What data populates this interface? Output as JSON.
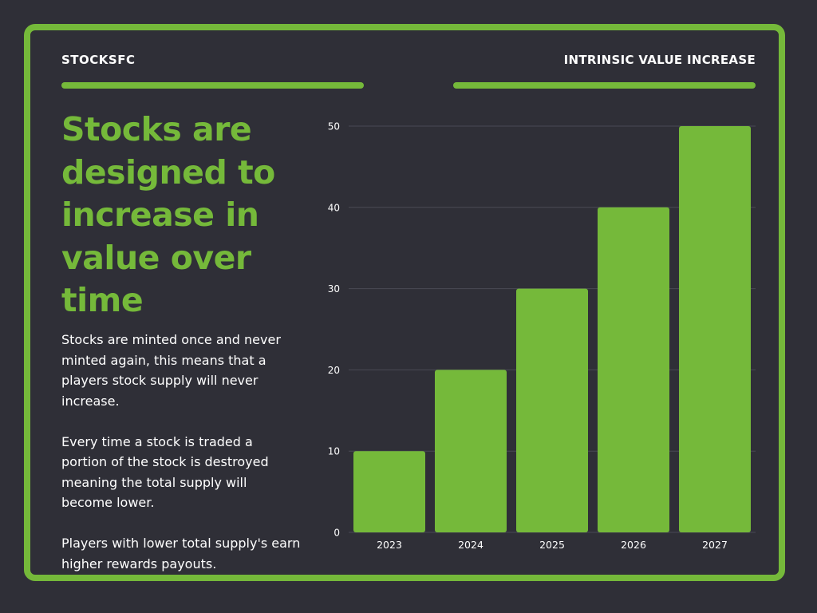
{
  "header": {
    "brand": "STOCKSFC",
    "section_title": "INTRINSIC VALUE INCREASE"
  },
  "headline": "Stocks are designed to increase in value over time",
  "paragraphs": [
    "Stocks are minted once and never minted again, this means that a players stock supply will never increase.",
    "Every time a stock is traded a portion of the stock is destroyed meaning the total supply will become lower.",
    "Players with lower total supply's earn higher rewards payouts."
  ],
  "colors": {
    "accent": "#75b93a",
    "background": "#2f2f37",
    "text": "#ffffff",
    "grid": "#4a4a55"
  },
  "chart_data": {
    "type": "bar",
    "title": "INTRINSIC VALUE INCREASE",
    "categories": [
      "2023",
      "2024",
      "2025",
      "2026",
      "2027"
    ],
    "values": [
      10,
      20,
      30,
      40,
      50
    ],
    "yticks": [
      0,
      10,
      20,
      30,
      40,
      50
    ],
    "ylim": [
      0,
      50
    ],
    "xlabel": "",
    "ylabel": "",
    "grid": true,
    "legend": "none"
  }
}
